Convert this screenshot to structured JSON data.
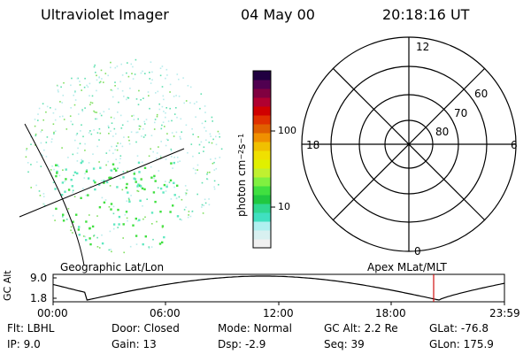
{
  "header": {
    "title": "Ultraviolet Imager",
    "date": "04 May 00",
    "time": "20:18:16 UT"
  },
  "colorbar": {
    "label_main": "photon cm",
    "exp1": "−2",
    "mid": "s",
    "exp2": "−1",
    "tick_high": "100",
    "tick_low": "10",
    "colors": [
      "#f0f0f0",
      "#d8f0f0",
      "#b0f0f0",
      "#40e0c0",
      "#30d890",
      "#20c840",
      "#40e040",
      "#80f040",
      "#c0f030",
      "#e0f000",
      "#f0e000",
      "#f0c000",
      "#f09000",
      "#e06000",
      "#e03000",
      "#d00000",
      "#b00030",
      "#800040",
      "#500050",
      "#200040"
    ]
  },
  "polar": {
    "mlt_top": "12",
    "mlt_left": "18",
    "mlt_right": "6",
    "mlt_bottom": "0",
    "lat_60": "60",
    "lat_70": "70",
    "lat_80": "80"
  },
  "map": {
    "label_left": "Geographic Lat/Lon",
    "label_right": "Apex MLat/MLT"
  },
  "altitude": {
    "ylabel": "GC Alt",
    "y_high": "9.0",
    "y_low": "1.8",
    "ticks": [
      "00:00",
      "06:00",
      "12:00",
      "18:00",
      "23:59"
    ]
  },
  "info": {
    "flt": "Flt:  LBHL",
    "ip": "IP:  9.0",
    "door": "Door: Closed",
    "gain": "Gain: 13",
    "mode": "Mode: Normal",
    "dsp": "Dsp:    -2.9",
    "gcalt": "GC Alt: 2.2 Re",
    "seq": "Seq: 39",
    "glat": "GLat: -76.8",
    "glon": "GLon: 175.9"
  }
}
